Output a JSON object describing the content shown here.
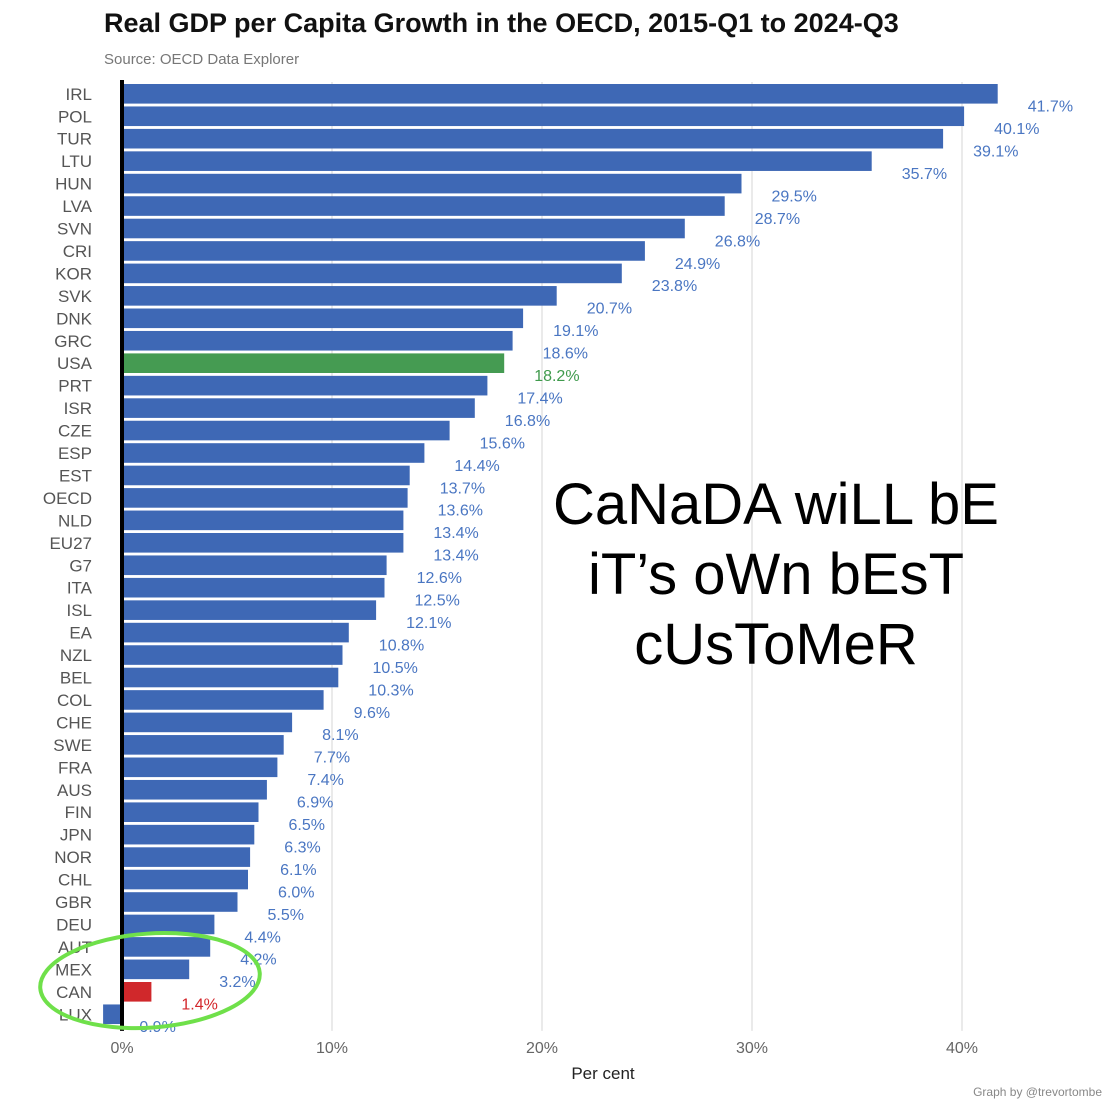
{
  "colors": {
    "bar": "#3e68b5",
    "highlight_usa": "#459b52",
    "highlight_can": "#d0282b",
    "label": "#4a76c2",
    "label_usa": "#3f9a4c",
    "label_can": "#d3262b",
    "ellipse": "#6fe04a",
    "grid": "#e4e4e4",
    "axis": "#000000"
  },
  "chart_data": {
    "type": "bar",
    "orientation": "horizontal",
    "title": "Real GDP per Capita Growth in the OECD, 2015-Q1 to 2024-Q3",
    "subtitle": "Source: OECD Data Explorer",
    "xlabel": "Per cent",
    "ylabel": "",
    "xlim": [
      -1,
      45
    ],
    "x_ticks": [
      0,
      10,
      20,
      30,
      40
    ],
    "x_tick_labels": [
      "0%",
      "10%",
      "20%",
      "30%",
      "40%"
    ],
    "grid": "vertical",
    "categories": [
      "IRL",
      "POL",
      "TUR",
      "LTU",
      "HUN",
      "LVA",
      "SVN",
      "CRI",
      "KOR",
      "SVK",
      "DNK",
      "GRC",
      "USA",
      "PRT",
      "ISR",
      "CZE",
      "ESP",
      "EST",
      "OECD",
      "NLD",
      "EU27",
      "G7",
      "ITA",
      "ISL",
      "EA",
      "NZL",
      "BEL",
      "COL",
      "CHE",
      "SWE",
      "FRA",
      "AUS",
      "FIN",
      "JPN",
      "NOR",
      "CHL",
      "GBR",
      "DEU",
      "AUT",
      "MEX",
      "CAN",
      "LUX"
    ],
    "values": [
      41.7,
      40.1,
      39.1,
      35.7,
      29.5,
      28.7,
      26.8,
      24.9,
      23.8,
      20.7,
      19.1,
      18.6,
      18.2,
      17.4,
      16.8,
      15.6,
      14.4,
      13.7,
      13.6,
      13.4,
      13.4,
      12.6,
      12.5,
      12.1,
      10.8,
      10.5,
      10.3,
      9.6,
      8.1,
      7.7,
      7.4,
      6.9,
      6.5,
      6.3,
      6.1,
      6.0,
      5.5,
      4.4,
      4.2,
      3.2,
      1.4,
      -0.9
    ],
    "data_labels": [
      "41.7%",
      "40.1%",
      "39.1%",
      "35.7%",
      "29.5%",
      "28.7%",
      "26.8%",
      "24.9%",
      "23.8%",
      "20.7%",
      "19.1%",
      "18.6%",
      "18.2%",
      "17.4%",
      "16.8%",
      "15.6%",
      "14.4%",
      "13.7%",
      "13.6%",
      "13.4%",
      "13.4%",
      "12.6%",
      "12.5%",
      "12.1%",
      "10.8%",
      "10.5%",
      "10.3%",
      "9.6%",
      "8.1%",
      "7.7%",
      "7.4%",
      "6.9%",
      "6.5%",
      "6.3%",
      "6.1%",
      "6.0%",
      "5.5%",
      "4.4%",
      "4.2%",
      "3.2%",
      "1.4%",
      "-0.9%"
    ],
    "highlighted": {
      "USA": "highlight_usa",
      "CAN": "highlight_can"
    },
    "circled": [
      "AUT",
      "MEX",
      "CAN",
      "LUX"
    ]
  },
  "annotation": {
    "lines": [
      "CaNaDA wiLL bE",
      "iT’s oWn bEsT",
      "cUsToMeR"
    ]
  },
  "credit": "Graph by @trevortombe"
}
